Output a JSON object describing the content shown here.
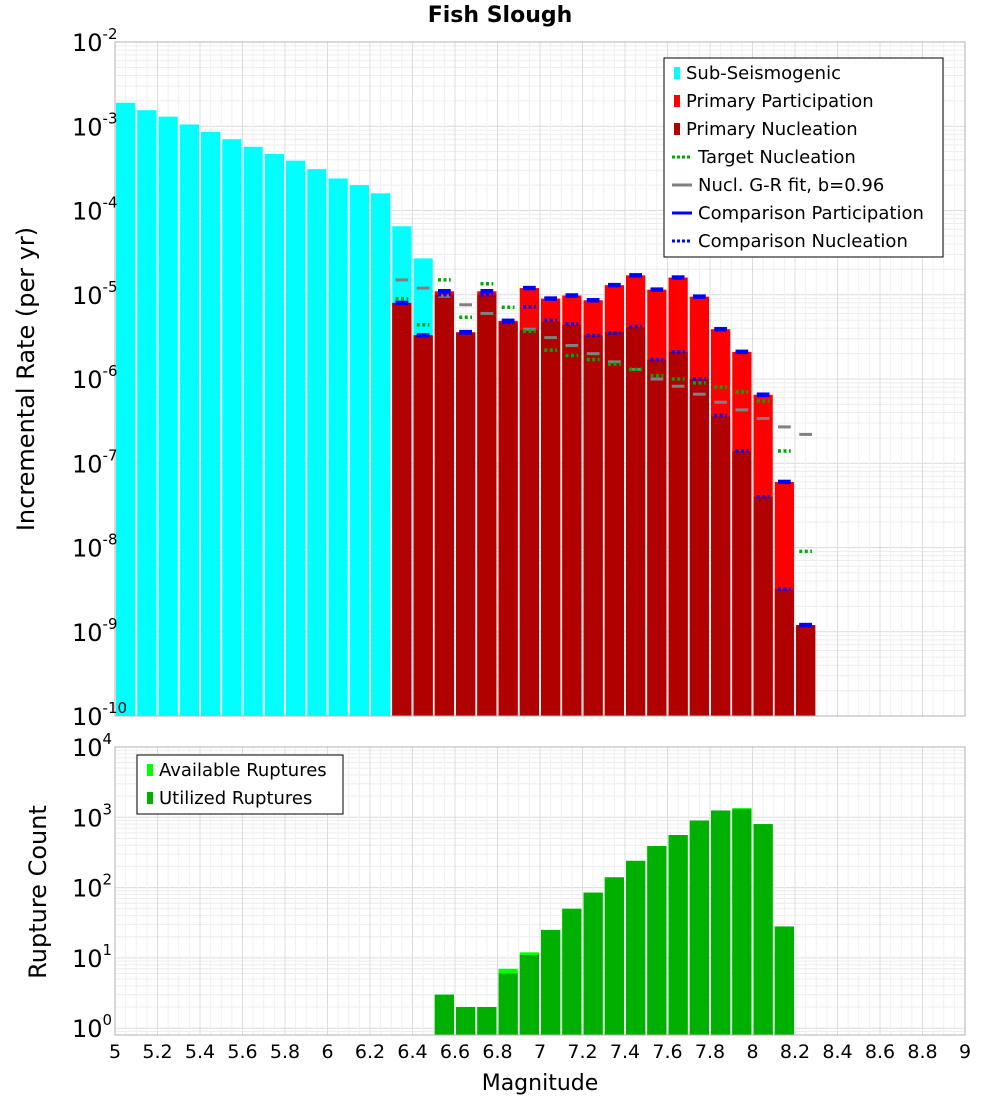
{
  "chart_data": [
    {
      "type": "bar",
      "title": "Fish Slough",
      "ylabel": "Incremental Rate (per yr)",
      "yscale": "log",
      "ylim": [
        1e-10,
        0.01
      ],
      "xlim": [
        5,
        9
      ],
      "bin_width": 0.1,
      "grid": true,
      "legend_position": "top-right",
      "y_tick_labels": [
        {
          "base": "10",
          "exp": "-10"
        },
        {
          "base": "10",
          "exp": "-9"
        },
        {
          "base": "10",
          "exp": "-8"
        },
        {
          "base": "10",
          "exp": "-7"
        },
        {
          "base": "10",
          "exp": "-6"
        },
        {
          "base": "10",
          "exp": "-5"
        },
        {
          "base": "10",
          "exp": "-4"
        },
        {
          "base": "10",
          "exp": "-3"
        },
        {
          "base": "10",
          "exp": "-2"
        }
      ],
      "legend": [
        {
          "label": "Sub-Seismogenic",
          "color": "#00ffff",
          "style": "bar"
        },
        {
          "label": "Primary Participation",
          "color": "#ff0000",
          "style": "bar"
        },
        {
          "label": "Primary Nucleation",
          "color": "#b00000",
          "style": "bar"
        },
        {
          "label": "Target Nucleation",
          "color": "#00aa00",
          "style": "dotted"
        },
        {
          "label": "Nucl. G-R fit, b=0.96",
          "color": "#808080",
          "style": "solid"
        },
        {
          "label": "Comparison Participation",
          "color": "#0000ff",
          "style": "solid"
        },
        {
          "label": "Comparison Nucleation",
          "color": "#0000ff",
          "style": "dotted"
        }
      ],
      "series": [
        {
          "name": "Sub-Seismogenic",
          "color": "#00ffff",
          "x": [
            5.05,
            5.15,
            5.25,
            5.35,
            5.45,
            5.55,
            5.65,
            5.75,
            5.85,
            5.95,
            6.05,
            6.15,
            6.25,
            6.35,
            6.45
          ],
          "values": [
            0.0019,
            0.00155,
            0.0013,
            0.00105,
            0.00086,
            0.0007,
            0.00057,
            0.00047,
            0.00039,
            0.00031,
            0.00024,
            0.0002,
            0.00016,
            6.5e-05,
            2.7e-05
          ]
        },
        {
          "name": "Primary Participation",
          "color": "#ff0000",
          "x": [
            6.35,
            6.45,
            6.55,
            6.65,
            6.75,
            6.85,
            6.95,
            7.05,
            7.15,
            7.25,
            7.35,
            7.45,
            7.55,
            7.65,
            7.75,
            7.85,
            7.95,
            8.05,
            8.15,
            8.25
          ],
          "values": [
            8e-06,
            3.3e-06,
            1.1e-05,
            3.6e-06,
            1.1e-05,
            4.9e-06,
            1.2e-05,
            9e-06,
            9.8e-06,
            8.6e-06,
            1.3e-05,
            1.7e-05,
            1.15e-05,
            1.6e-05,
            9.5e-06,
            3.9e-06,
            2.1e-06,
            6.5e-07,
            6e-08,
            1.2e-09
          ]
        },
        {
          "name": "Primary Nucleation",
          "color": "#b00000",
          "x": [
            6.35,
            6.45,
            6.55,
            6.65,
            6.75,
            6.85,
            6.95,
            7.05,
            7.15,
            7.25,
            7.35,
            7.45,
            7.55,
            7.65,
            7.75,
            7.85,
            7.95,
            8.05,
            8.15,
            8.25
          ],
          "values": [
            8e-06,
            3.3e-06,
            1e-05,
            3.5e-06,
            1e-05,
            4.7e-06,
            3.8e-06,
            4.8e-06,
            4.4e-06,
            3.3e-06,
            3.6e-06,
            4.1e-06,
            1.7e-06,
            2.1e-06,
            1e-06,
            3.6e-07,
            1.4e-07,
            4e-08,
            3.2e-09,
            1.2e-09
          ]
        },
        {
          "name": "Target Nucleation",
          "color": "#00aa00",
          "x": [
            6.35,
            6.45,
            6.55,
            6.65,
            6.75,
            6.85,
            6.95,
            7.05,
            7.15,
            7.25,
            7.35,
            7.45,
            7.55,
            7.65,
            7.75,
            7.85,
            7.95,
            8.05,
            8.15,
            8.25
          ],
          "values": [
            9e-06,
            4.4e-06,
            1.5e-05,
            5.4e-06,
            1.35e-05,
            7.1e-06,
            3.7e-06,
            2.2e-06,
            1.9e-06,
            1.7e-06,
            1.5e-06,
            1.3e-06,
            1.1e-06,
            1e-06,
            9e-07,
            8e-07,
            7e-07,
            5.5e-07,
            1.4e-07,
            9e-09
          ]
        },
        {
          "name": "Nucl. G-R fit, b=0.96",
          "color": "#808080",
          "x": [
            6.35,
            6.45,
            6.55,
            6.65,
            6.75,
            6.85,
            6.95,
            7.05,
            7.15,
            7.25,
            7.35,
            7.45,
            7.55,
            7.65,
            7.75,
            7.85,
            7.95,
            8.05,
            8.15,
            8.25
          ],
          "values": [
            1.5e-05,
            1.2e-05,
            9.6e-06,
            7.6e-06,
            6e-06,
            4.8e-06,
            3.9e-06,
            3.1e-06,
            2.5e-06,
            2e-06,
            1.6e-06,
            1.3e-06,
            1e-06,
            8.2e-07,
            6.6e-07,
            5.3e-07,
            4.3e-07,
            3.4e-07,
            2.7e-07,
            2.2e-07
          ]
        },
        {
          "name": "Comparison Participation",
          "color": "#0000ff",
          "x": [
            6.35,
            6.45,
            6.55,
            6.65,
            6.75,
            6.85,
            6.95,
            7.05,
            7.15,
            7.25,
            7.35,
            7.45,
            7.55,
            7.65,
            7.75,
            7.85,
            7.95,
            8.05,
            8.15,
            8.25
          ],
          "values": [
            8e-06,
            3.3e-06,
            1.1e-05,
            3.6e-06,
            1.1e-05,
            4.9e-06,
            1.2e-05,
            9e-06,
            9.8e-06,
            8.6e-06,
            1.3e-05,
            1.7e-05,
            1.15e-05,
            1.6e-05,
            9.5e-06,
            3.9e-06,
            2.1e-06,
            6.5e-07,
            6e-08,
            1.2e-09
          ]
        },
        {
          "name": "Comparison Nucleation",
          "color": "#0000ff",
          "x": [
            6.35,
            6.45,
            6.55,
            6.65,
            6.75,
            6.85,
            6.95,
            7.05,
            7.15,
            7.25,
            7.35,
            7.45,
            7.55,
            7.65,
            7.75,
            7.85,
            7.95,
            8.05,
            8.15,
            8.25
          ],
          "values": [
            8e-06,
            3.3e-06,
            1e-05,
            3.5e-06,
            1e-05,
            4.7e-06,
            7.2e-06,
            5e-06,
            4.5e-06,
            3.3e-06,
            3.5e-06,
            4.2e-06,
            1.7e-06,
            2.1e-06,
            1e-06,
            3.7e-07,
            1.4e-07,
            4e-08,
            3.2e-09,
            1.2e-09
          ]
        }
      ]
    },
    {
      "type": "bar",
      "title": "",
      "xlabel": "Magnitude",
      "ylabel": "Rupture Count",
      "yscale": "log",
      "ylim": [
        0.8,
        10000
      ],
      "xlim": [
        5,
        9
      ],
      "bin_width": 0.1,
      "grid": true,
      "legend_position": "top-left",
      "x_ticks": [
        "5",
        "5.2",
        "5.4",
        "5.6",
        "5.8",
        "6",
        "6.2",
        "6.4",
        "6.6",
        "6.8",
        "7",
        "7.2",
        "7.4",
        "7.6",
        "7.8",
        "8",
        "8.2",
        "8.4",
        "8.6",
        "8.8",
        "9"
      ],
      "y_tick_labels": [
        {
          "base": "10",
          "exp": "0"
        },
        {
          "base": "10",
          "exp": "1"
        },
        {
          "base": "10",
          "exp": "2"
        },
        {
          "base": "10",
          "exp": "3"
        },
        {
          "base": "10",
          "exp": "4"
        }
      ],
      "legend": [
        {
          "label": "Available Ruptures",
          "color": "#00ff00",
          "style": "bar"
        },
        {
          "label": "Utilized Ruptures",
          "color": "#00b000",
          "style": "bar"
        }
      ],
      "series": [
        {
          "name": "Available Ruptures",
          "color": "#00ff00",
          "x": [
            6.55,
            6.65,
            6.75,
            6.85,
            6.95,
            7.05,
            7.15,
            7.25,
            7.35,
            7.45,
            7.55,
            7.65,
            7.75,
            7.85,
            7.95,
            8.05,
            8.15
          ],
          "values": [
            3,
            2,
            2,
            7,
            12,
            25,
            50,
            85,
            140,
            240,
            390,
            560,
            900,
            1250,
            1350,
            800,
            28
          ]
        },
        {
          "name": "Utilized Ruptures",
          "color": "#00b000",
          "x": [
            6.55,
            6.65,
            6.75,
            6.85,
            6.95,
            7.05,
            7.15,
            7.25,
            7.35,
            7.45,
            7.55,
            7.65,
            7.75,
            7.85,
            7.95,
            8.05,
            8.15
          ],
          "values": [
            3,
            2,
            2,
            6,
            11,
            25,
            50,
            85,
            140,
            240,
            390,
            560,
            900,
            1250,
            1300,
            800,
            28
          ]
        }
      ]
    }
  ]
}
